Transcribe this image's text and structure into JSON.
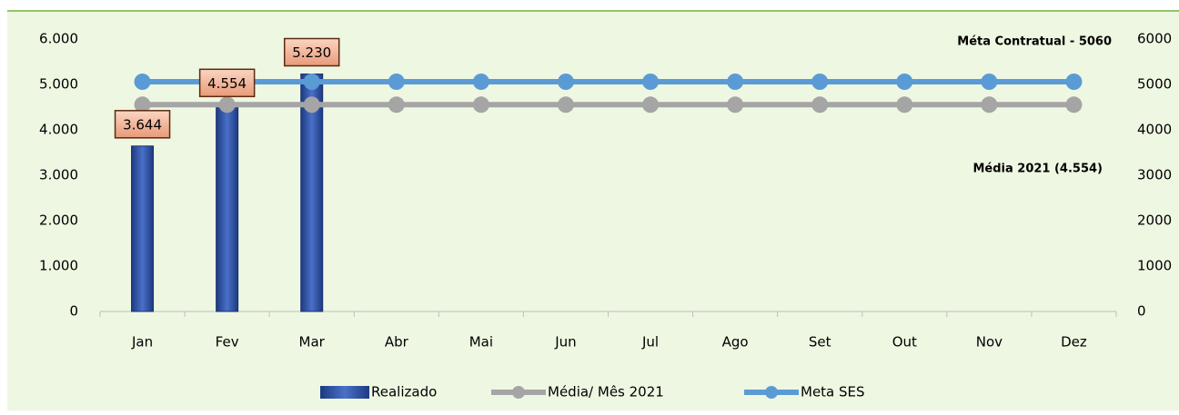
{
  "chart_data": {
    "type": "bar",
    "categories": [
      "Jan",
      "Fev",
      "Mar",
      "Abr",
      "Mai",
      "Jun",
      "Jul",
      "Ago",
      "Set",
      "Out",
      "Nov",
      "Dez"
    ],
    "series": [
      {
        "name": "Realizado",
        "type": "bar",
        "color": "#2f55a8",
        "values": [
          3644,
          4554,
          5230,
          null,
          null,
          null,
          null,
          null,
          null,
          null,
          null,
          null
        ],
        "value_labels": [
          "3.644",
          "4.554",
          "5.230",
          null,
          null,
          null,
          null,
          null,
          null,
          null,
          null,
          null
        ]
      },
      {
        "name": "Média/ Mês 2021",
        "type": "line",
        "color": "#a5a5a5",
        "values": [
          4554,
          4554,
          4554,
          4554,
          4554,
          4554,
          4554,
          4554,
          4554,
          4554,
          4554,
          4554
        ]
      },
      {
        "name": "Meta SES",
        "type": "line",
        "color": "#5b9bd5",
        "values": [
          5060,
          5060,
          5060,
          5060,
          5060,
          5060,
          5060,
          5060,
          5060,
          5060,
          5060,
          5060
        ]
      }
    ],
    "ylim": [
      0,
      6000
    ],
    "yticks": [
      0,
      {
        "value": 1000,
        "label": "1.000"
      },
      {
        "value": 2000,
        "label": "2.000"
      },
      {
        "value": 3000,
        "label": "3.000"
      },
      {
        "value": 4000,
        "label": "4.000"
      },
      {
        "value": 5000,
        "label": "5.000"
      },
      {
        "value": 6000,
        "label": "6.000"
      }
    ],
    "y2lim": [
      0,
      6000
    ],
    "y2ticks": [
      0,
      1000,
      2000,
      3000,
      4000,
      5000,
      6000
    ],
    "annotations": [
      "Méta Contratual - 5060",
      "Média 2021 (4.554)"
    ],
    "legend": "bottom"
  }
}
